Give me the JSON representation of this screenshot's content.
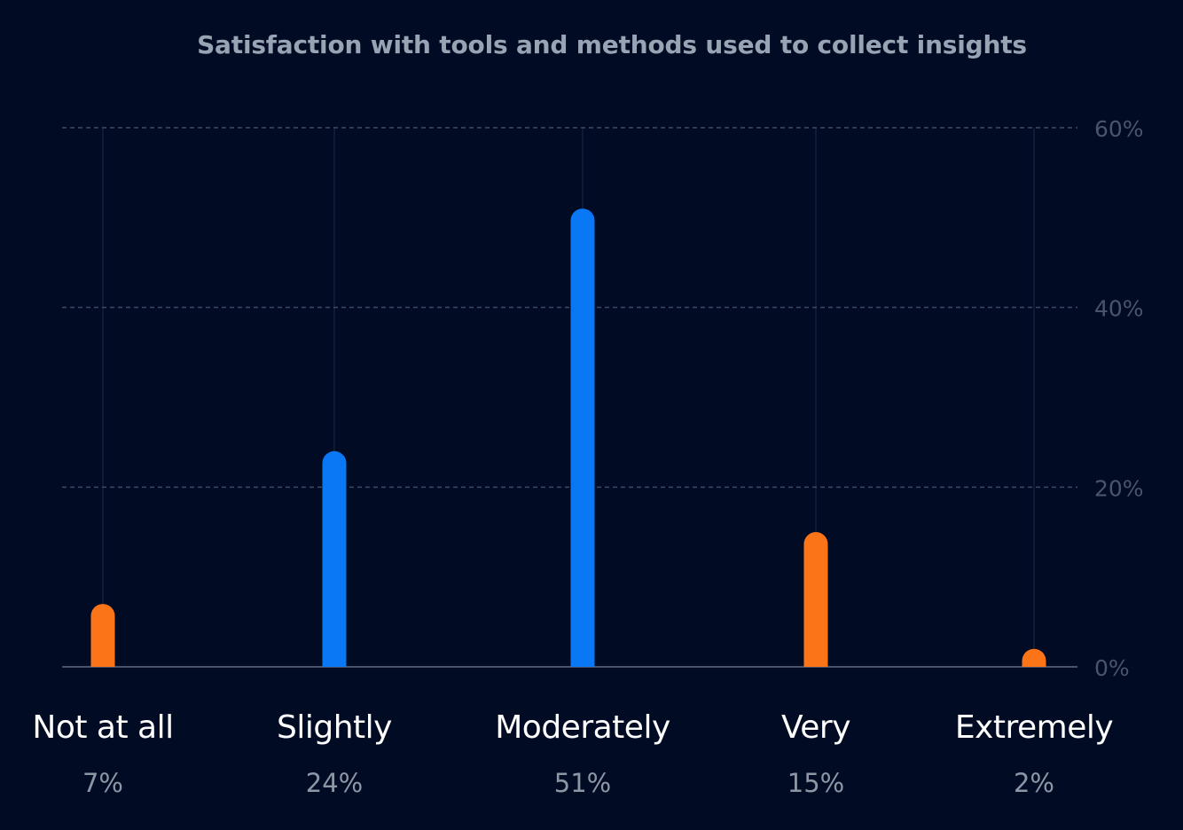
{
  "chart_data": {
    "type": "bar",
    "title": "Satisfaction with tools and methods used to collect insights",
    "categories": [
      "Not at all",
      "Slightly",
      "Moderately",
      "Very",
      "Extremely"
    ],
    "values": [
      7,
      24,
      51,
      15,
      2
    ],
    "value_labels": [
      "7%",
      "24%",
      "51%",
      "15%",
      "2%"
    ],
    "bar_colors": [
      "#fb7418",
      "#0a78f5",
      "#0a78f5",
      "#fb7418",
      "#fb7418"
    ],
    "y_ticks": [
      {
        "value": 60,
        "label": "60%"
      },
      {
        "value": 40,
        "label": "40%"
      },
      {
        "value": 20,
        "label": "20%"
      },
      {
        "value": 0,
        "label": "0%"
      }
    ],
    "ylim": [
      0,
      60
    ],
    "y_axis_side": "right",
    "grid": true,
    "xlabel": "",
    "ylabel": ""
  },
  "colors": {
    "background": "#020b24",
    "orange": "#fb7418",
    "blue": "#0a78f5",
    "grid": "#3f4a62",
    "axis_text": "#4b5468",
    "title_text": "#9aa3b3"
  }
}
